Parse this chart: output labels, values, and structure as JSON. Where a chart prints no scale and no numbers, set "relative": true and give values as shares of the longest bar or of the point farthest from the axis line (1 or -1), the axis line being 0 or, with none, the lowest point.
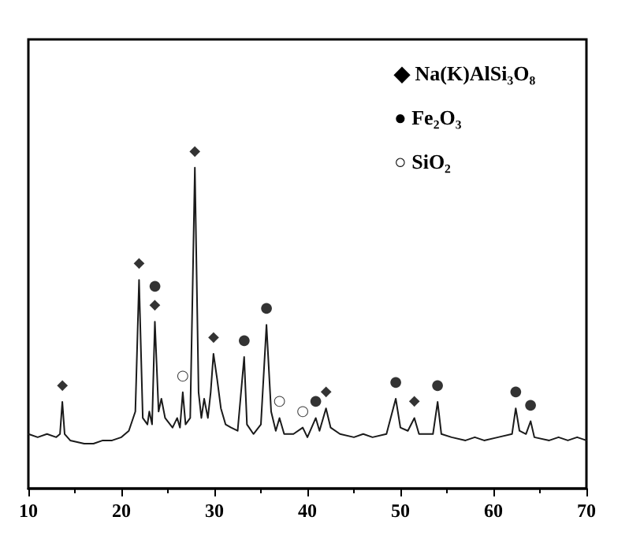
{
  "chart_data": {
    "type": "line",
    "relative": true,
    "xlim": [
      10,
      70
    ],
    "xticks": [
      10,
      20,
      30,
      40,
      50,
      60,
      70
    ],
    "grid": false,
    "marker": "none",
    "annotations": [
      "◆ Na(K)AlSi₃O₈",
      "● Fe₂O₃",
      "○ SiO₂",
      {
        "text": "◆",
        "x": 13.65,
        "y": 0.27
      },
      {
        "text": "◆",
        "x": 21.9,
        "y": 0.65
      },
      {
        "text": "◆",
        "x": 23.6,
        "y": 0.52
      },
      {
        "text": "●",
        "x": 23.6,
        "y": 0.52
      },
      {
        "text": "○",
        "x": 26.6,
        "y": 0.3
      },
      {
        "text": "◆",
        "x": 27.9,
        "y": 1.0
      },
      {
        "text": "◆",
        "x": 29.9,
        "y": 0.42
      },
      {
        "text": "●",
        "x": 33.2,
        "y": 0.41
      },
      {
        "text": "●",
        "x": 35.6,
        "y": 0.51
      },
      {
        "text": "○",
        "x": 37,
        "y": 0.22
      },
      {
        "text": "○",
        "x": 39.5,
        "y": 0.19
      },
      {
        "text": "●",
        "x": 40.9,
        "y": 0.22
      },
      {
        "text": "◆",
        "x": 42,
        "y": 0.25
      },
      {
        "text": "●",
        "x": 49.5,
        "y": 0.28
      },
      {
        "text": "◆",
        "x": 51.5,
        "y": 0.22
      },
      {
        "text": "●",
        "x": 54,
        "y": 0.27
      },
      {
        "text": "●",
        "x": 62.4,
        "y": 0.25
      },
      {
        "text": "●",
        "x": 64,
        "y": 0.21
      }
    ],
    "series": [
      {
        "color": "#1a1a1a",
        "x": [
          10,
          11,
          12,
          13,
          13.4,
          13.65,
          13.9,
          14.5,
          16,
          17,
          18,
          19,
          20,
          20.8,
          21.5,
          21.9,
          22.3,
          22.8,
          23.0,
          23.3,
          23.6,
          24.0,
          24.3,
          24.7,
          25.5,
          26.0,
          26.3,
          26.6,
          26.9,
          27.4,
          27.9,
          28.3,
          28.6,
          28.9,
          29.3,
          29.6,
          29.9,
          30.3,
          30.7,
          31.2,
          31.8,
          32.5,
          33.2,
          33.5,
          34.2,
          35.0,
          35.6,
          36.1,
          36.6,
          37,
          37.5,
          38.5,
          39.5,
          40,
          40.9,
          41.3,
          42,
          42.5,
          43.5,
          45,
          46,
          47,
          48.5,
          49.5,
          50,
          50.8,
          51.5,
          52,
          53.5,
          54,
          54.4,
          55.5,
          57,
          58,
          59,
          60.5,
          62,
          62.4,
          62.8,
          63.5,
          64,
          64.4,
          66,
          67,
          68,
          69,
          70
        ],
        "values": [
          0.17,
          0.16,
          0.17,
          0.16,
          0.17,
          0.27,
          0.17,
          0.15,
          0.14,
          0.14,
          0.15,
          0.15,
          0.16,
          0.18,
          0.24,
          0.65,
          0.22,
          0.2,
          0.24,
          0.2,
          0.52,
          0.24,
          0.28,
          0.22,
          0.19,
          0.22,
          0.19,
          0.3,
          0.2,
          0.22,
          1.0,
          0.3,
          0.22,
          0.28,
          0.22,
          0.3,
          0.42,
          0.34,
          0.25,
          0.2,
          0.19,
          0.18,
          0.41,
          0.2,
          0.17,
          0.2,
          0.51,
          0.24,
          0.18,
          0.22,
          0.17,
          0.17,
          0.19,
          0.16,
          0.22,
          0.18,
          0.25,
          0.19,
          0.17,
          0.16,
          0.17,
          0.16,
          0.17,
          0.28,
          0.19,
          0.18,
          0.22,
          0.17,
          0.17,
          0.27,
          0.17,
          0.16,
          0.15,
          0.16,
          0.15,
          0.16,
          0.17,
          0.25,
          0.18,
          0.17,
          0.21,
          0.16,
          0.15,
          0.16,
          0.15,
          0.16,
          0.15
        ]
      }
    ]
  }
}
